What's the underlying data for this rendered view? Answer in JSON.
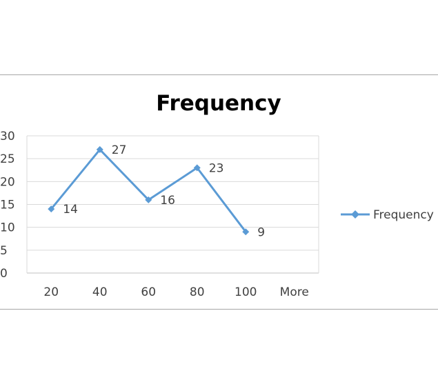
{
  "chart_data": {
    "type": "line",
    "title": "Frequency",
    "xlabel": "",
    "ylabel": "",
    "categories": [
      "20",
      "40",
      "60",
      "80",
      "100",
      "More"
    ],
    "series": [
      {
        "name": "Frequency",
        "values": [
          14,
          27,
          16,
          23,
          9,
          null
        ],
        "data_labels": [
          "14",
          "27",
          "16",
          "23",
          "9",
          ""
        ],
        "color": "#5b9bd5",
        "marker": "diamond"
      }
    ],
    "y_ticks": [
      "0",
      "5",
      "10",
      "15",
      "20",
      "25",
      "30"
    ],
    "ylim": [
      0,
      30
    ],
    "grid": true,
    "legend_position": "right"
  }
}
